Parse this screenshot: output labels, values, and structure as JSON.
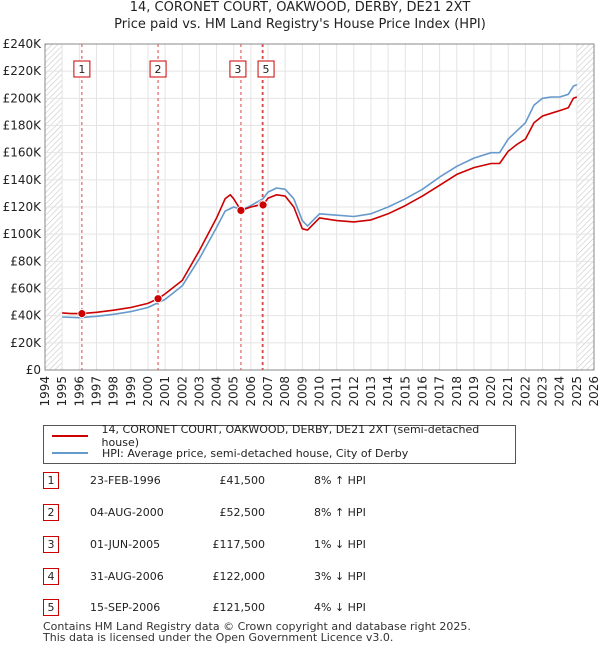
{
  "title_line1": "14, CORONET COURT, OAKWOOD, DERBY, DE21 2XT",
  "title_line2": "Price paid vs. HM Land Registry's House Price Index (HPI)",
  "colors": {
    "property": "#cc0000",
    "hpi": "#6699cc",
    "grid": "#e4e4e4",
    "sale_line": "#dd4444",
    "projection_hatch": "#c8c8c8"
  },
  "chart_data": {
    "type": "line",
    "xlim": [
      1994,
      2026
    ],
    "ylim": [
      0,
      240000
    ],
    "x_ticks": [
      "1994",
      "1995",
      "1996",
      "1997",
      "1998",
      "1999",
      "2000",
      "2001",
      "2002",
      "2003",
      "2004",
      "2005",
      "2006",
      "2007",
      "2008",
      "2009",
      "2010",
      "2011",
      "2012",
      "2013",
      "2014",
      "2015",
      "2016",
      "2017",
      "2018",
      "2019",
      "2020",
      "2021",
      "2022",
      "2023",
      "2024",
      "2025",
      "2026"
    ],
    "y_ticks": [
      {
        "value": 0,
        "label": "£0"
      },
      {
        "value": 20000,
        "label": "£20K"
      },
      {
        "value": 40000,
        "label": "£40K"
      },
      {
        "value": 60000,
        "label": "£60K"
      },
      {
        "value": 80000,
        "label": "£80K"
      },
      {
        "value": 100000,
        "label": "£100K"
      },
      {
        "value": 120000,
        "label": "£120K"
      },
      {
        "value": 140000,
        "label": "£140K"
      },
      {
        "value": 160000,
        "label": "£160K"
      },
      {
        "value": 180000,
        "label": "£180K"
      },
      {
        "value": 200000,
        "label": "£200K"
      },
      {
        "value": 220000,
        "label": "£220K"
      },
      {
        "value": 240000,
        "label": "£240K"
      }
    ],
    "data_start": 1995.0,
    "projection_from": 2025.0,
    "series": [
      {
        "name": "14, CORONET COURT, OAKWOOD, DERBY, DE21 2XT (semi-detached house)",
        "color": "#cc0000",
        "x": [
          1995.0,
          1995.5,
          1996.15,
          1997.0,
          1998.0,
          1999.0,
          2000.0,
          2000.59,
          2001.0,
          2002.0,
          2003.0,
          2004.0,
          2004.5,
          2004.8,
          2005.0,
          2005.42,
          2006.0,
          2006.66,
          2006.71,
          2007.0,
          2007.5,
          2008.0,
          2008.5,
          2009.0,
          2009.3,
          2010.0,
          2011.0,
          2012.0,
          2013.0,
          2014.0,
          2015.0,
          2016.0,
          2017.0,
          2018.0,
          2019.0,
          2020.0,
          2020.5,
          2021.0,
          2021.5,
          2022.0,
          2022.5,
          2023.0,
          2023.5,
          2024.0,
          2024.5,
          2024.8,
          2025.0
        ],
        "y": [
          42000,
          41500,
          41500,
          42500,
          44000,
          46000,
          49000,
          52500,
          56000,
          66000,
          88000,
          112000,
          126000,
          129000,
          126000,
          117500,
          120000,
          122000,
          121500,
          126500,
          129000,
          128000,
          120000,
          104000,
          103000,
          112000,
          110000,
          109000,
          110500,
          115000,
          121000,
          128000,
          136000,
          144000,
          149000,
          152000,
          152000,
          161000,
          166000,
          170000,
          182000,
          187000,
          189000,
          191000,
          193000,
          200000,
          201000
        ]
      },
      {
        "name": "HPI: Average price, semi-detached house, City of Derby",
        "color": "#6699cc",
        "x": [
          1995.0,
          1996.0,
          1997.0,
          1998.0,
          1999.0,
          2000.0,
          2001.0,
          2002.0,
          2003.0,
          2004.0,
          2004.5,
          2005.0,
          2005.5,
          2006.0,
          2006.7,
          2007.0,
          2007.5,
          2008.0,
          2008.5,
          2009.0,
          2009.3,
          2010.0,
          2011.0,
          2012.0,
          2013.0,
          2014.0,
          2015.0,
          2016.0,
          2017.0,
          2018.0,
          2019.0,
          2020.0,
          2020.5,
          2021.0,
          2021.5,
          2022.0,
          2022.5,
          2023.0,
          2023.5,
          2024.0,
          2024.5,
          2024.8,
          2025.0
        ],
        "y": [
          39000,
          38500,
          39500,
          41000,
          43000,
          46000,
          52000,
          62000,
          82000,
          105000,
          117000,
          120000,
          118000,
          121000,
          126000,
          131000,
          134000,
          133000,
          126000,
          110000,
          106000,
          115000,
          114000,
          113000,
          115000,
          120000,
          126000,
          133000,
          142000,
          150000,
          156000,
          160000,
          160000,
          170000,
          176000,
          182000,
          195000,
          200000,
          201000,
          201000,
          203000,
          209000,
          210000
        ]
      }
    ],
    "sales": [
      {
        "label": "1",
        "x": 1996.15,
        "y": 41500
      },
      {
        "label": "2",
        "x": 2000.59,
        "y": 52500
      },
      {
        "label": "3",
        "x": 2005.42,
        "y": 117500
      },
      {
        "label": "4",
        "x": 2006.66,
        "y": 122000
      },
      {
        "label": "5",
        "x": 2006.71,
        "y": 121500
      }
    ],
    "marker_labels": [
      "1",
      "2",
      "3",
      "5"
    ]
  },
  "legend": {
    "property_label": "14, CORONET COURT, OAKWOOD, DERBY, DE21 2XT (semi-detached house)",
    "hpi_label": "HPI: Average price, semi-detached house, City of Derby"
  },
  "transactions": [
    {
      "num": "1",
      "date": "23-FEB-1996",
      "price": "£41,500",
      "hpi": "8% ↑ HPI"
    },
    {
      "num": "2",
      "date": "04-AUG-2000",
      "price": "£52,500",
      "hpi": "8% ↑ HPI"
    },
    {
      "num": "3",
      "date": "01-JUN-2005",
      "price": "£117,500",
      "hpi": "1% ↓ HPI"
    },
    {
      "num": "4",
      "date": "31-AUG-2006",
      "price": "£122,000",
      "hpi": "3% ↓ HPI"
    },
    {
      "num": "5",
      "date": "15-SEP-2006",
      "price": "£121,500",
      "hpi": "4% ↓ HPI"
    }
  ],
  "footer_line1": "Contains HM Land Registry data © Crown copyright and database right 2025.",
  "footer_line2": "This data is licensed under the Open Government Licence v3.0."
}
